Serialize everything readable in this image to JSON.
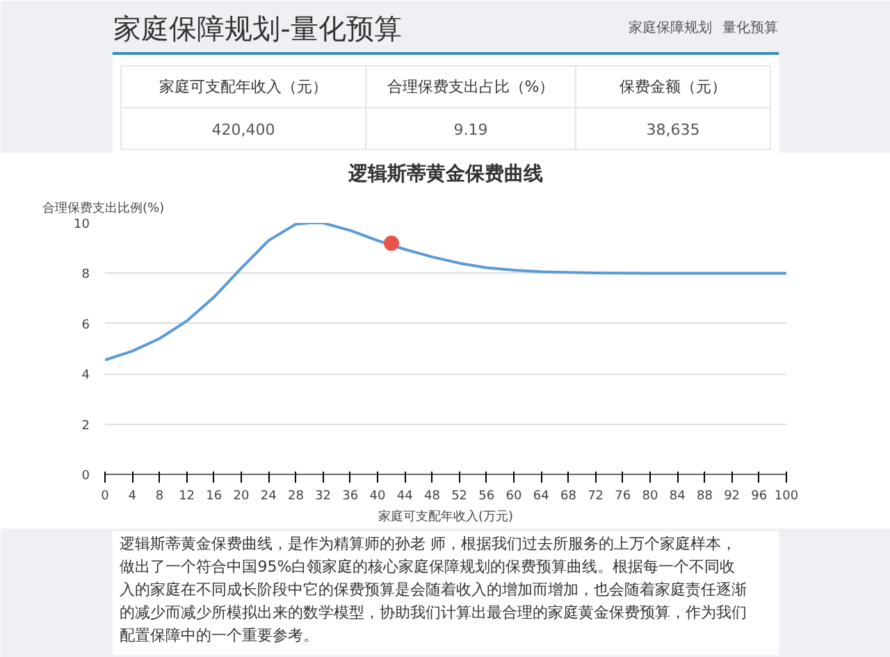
{
  "chart_data": [
    {
      "type": "other",
      "title": "家庭保障规划-量化预算",
      "annotations": [
        "家庭保障规划",
        "量化预算",
        "420,400",
        "9.19",
        "38,635"
      ],
      "categories": [
        "家庭可支配年收入（元）",
        "合理保费支出占比（%）",
        "保费金额（元）"
      ]
    },
    {
      "type": "line",
      "title": "逻辑斯蒂黄金保费曲线",
      "xlabel": "家庭可支配年收入(万元)",
      "ylabel": "合理保费支出比例(%)",
      "xlim": [
        0,
        100
      ],
      "ylim": [
        0,
        10
      ],
      "xticks": [
        0,
        4,
        8,
        12,
        16,
        20,
        24,
        28,
        32,
        36,
        40,
        44,
        48,
        52,
        56,
        60,
        64,
        68,
        72,
        76,
        80,
        84,
        88,
        92,
        96,
        100
      ],
      "yticks": [
        0,
        2,
        4,
        6,
        8,
        10
      ],
      "grid": "y",
      "series": [
        {
          "type": "line",
          "color": "#5b9bd5",
          "x": [
            0,
            4,
            8,
            12,
            16,
            20,
            24,
            28,
            30,
            32,
            36,
            40,
            44,
            48,
            52,
            56,
            60,
            64,
            68,
            72,
            80,
            90,
            100
          ],
          "values": [
            4.55,
            4.9,
            5.4,
            6.1,
            7.05,
            8.2,
            9.3,
            9.95,
            10.0,
            10.0,
            9.7,
            9.3,
            8.95,
            8.65,
            8.4,
            8.22,
            8.12,
            8.06,
            8.03,
            8.01,
            8.0,
            8.0,
            8.0
          ]
        },
        {
          "type": "scatter",
          "color": "#e8534a",
          "marker": "circle",
          "x": [
            42.04
          ],
          "values": [
            9.19
          ]
        }
      ],
      "annotations": [
        "逻辑斯蒂黄金保费曲线，是作为精算师的孙老 师，根据我们过去所服务的上万个家庭样本，做出了一个符合中国95%白领家庭的核心家庭保障规划的保费预算曲线。根据每一个不同收入的家庭在不同成长阶段中它的保费预算是会随着收入的增加而增加，也会随着家庭责任逐渐的减少而减少所模拟出来的数学模型，协助我们计算出最合理的家庭黄金保费预算，作为我们配置保障中的一个重要参考。"
      ]
    }
  ]
}
